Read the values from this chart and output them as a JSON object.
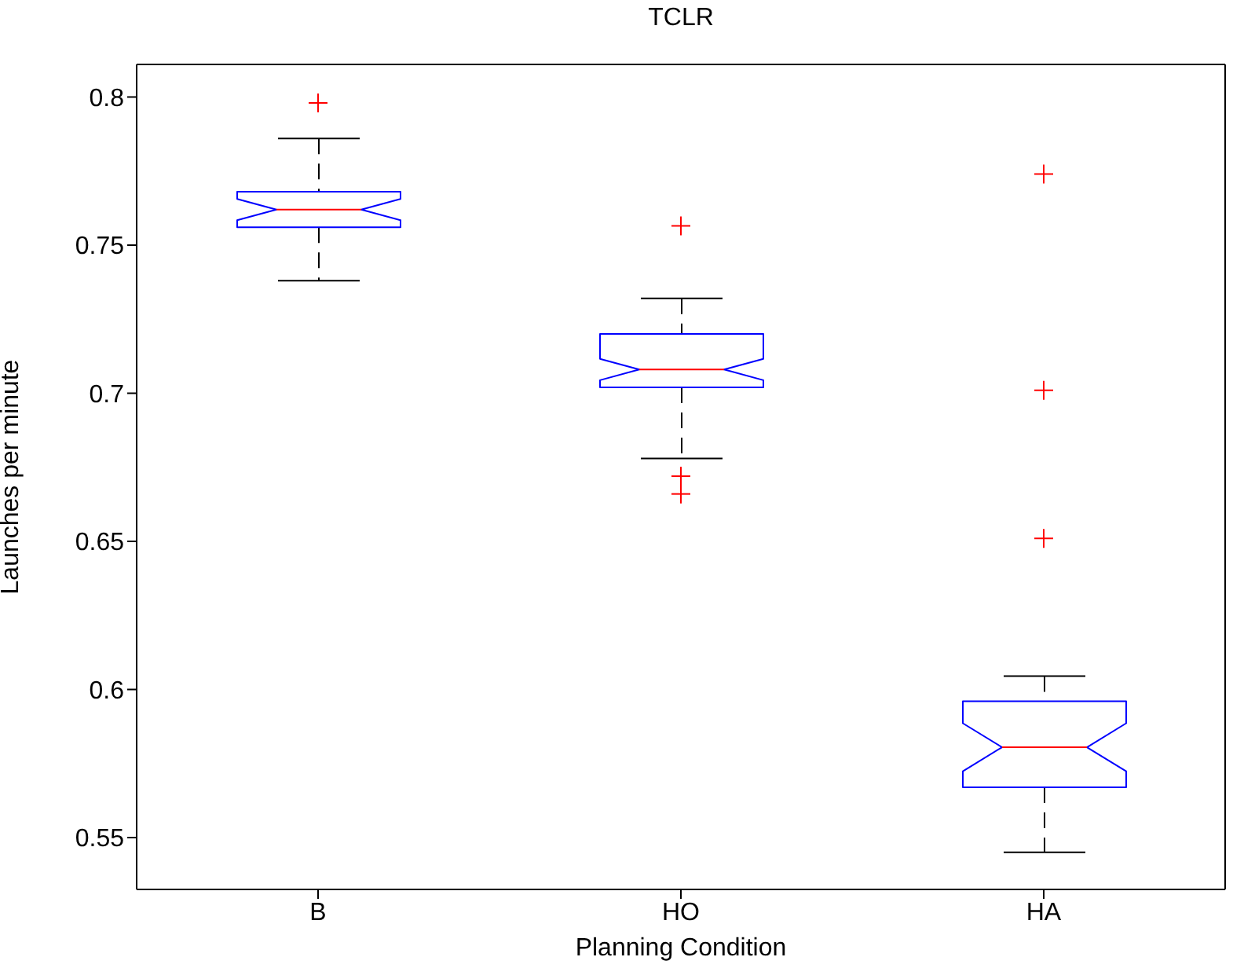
{
  "chart_data": {
    "type": "box",
    "title": "TCLR",
    "xlabel": "Planning Condition",
    "ylabel": "Launches per minute",
    "categories": [
      "B",
      "HO",
      "HA"
    ],
    "color": "#0000ff",
    "ylim": [
      0.5325,
      0.811
    ],
    "yticks": [
      0.55,
      0.6,
      0.65,
      0.7,
      0.75,
      0.8
    ],
    "grid": false,
    "boxes": [
      {
        "low": 0.738,
        "q1": 0.756,
        "median": 0.762,
        "q3": 0.768,
        "high": 0.786,
        "outliers": [
          0.798
        ]
      },
      {
        "low": 0.678,
        "q1": 0.702,
        "median": 0.708,
        "q3": 0.72,
        "high": 0.732,
        "outliers": [
          0.7565,
          0.672,
          0.666
        ]
      },
      {
        "low": 0.545,
        "q1": 0.567,
        "median": 0.5805,
        "q3": 0.596,
        "high": 0.6045,
        "outliers": [
          0.774,
          0.701,
          0.651
        ]
      }
    ]
  }
}
